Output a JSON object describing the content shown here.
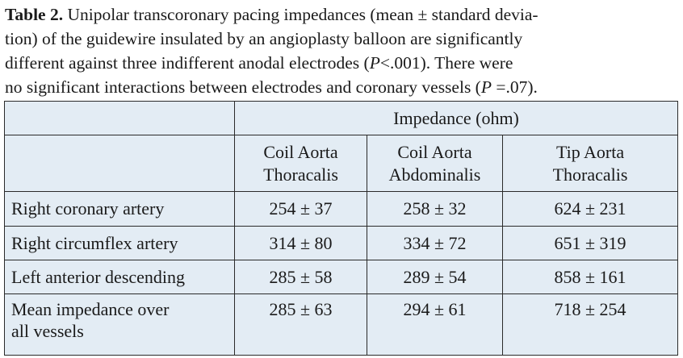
{
  "caption": {
    "label": "Table 2.",
    "lines": [
      " Unipolar transcoronary pacing impedances (mean ± standard devia-",
      "tion) of the guidewire insulated by an angioplasty balloon are significantly",
      "different against three indifferent anodal electrodes (",
      "no significant interactions between electrodes and coronary vessels ("
    ],
    "p_symbol": "P",
    "line3_end": "<.001). There were",
    "line4_end": " =.07)."
  },
  "table": {
    "group_header": "Impedance (ohm)",
    "columns": [
      {
        "line1": "Coil Aorta",
        "line2": "Thoracalis"
      },
      {
        "line1": "Coil Aorta",
        "line2": "Abdominalis"
      },
      {
        "line1": "Tip Aorta",
        "line2": "Thoracalis"
      }
    ],
    "rows": [
      {
        "label": "Right coronary artery",
        "values": [
          "254 ± 37",
          "258 ± 32",
          "624 ± 231"
        ]
      },
      {
        "label": "Right circumflex artery",
        "values": [
          "314 ± 80",
          "334 ± 72",
          "651 ± 319"
        ]
      },
      {
        "label": "Left anterior descending",
        "values": [
          "285 ± 58",
          "289 ± 54",
          "858 ± 161"
        ]
      },
      {
        "label_line1": "Mean impedance over",
        "label_line2": "all vessels",
        "values": [
          "285 ± 63",
          "294 ± 61",
          "718 ± 254"
        ]
      }
    ]
  }
}
